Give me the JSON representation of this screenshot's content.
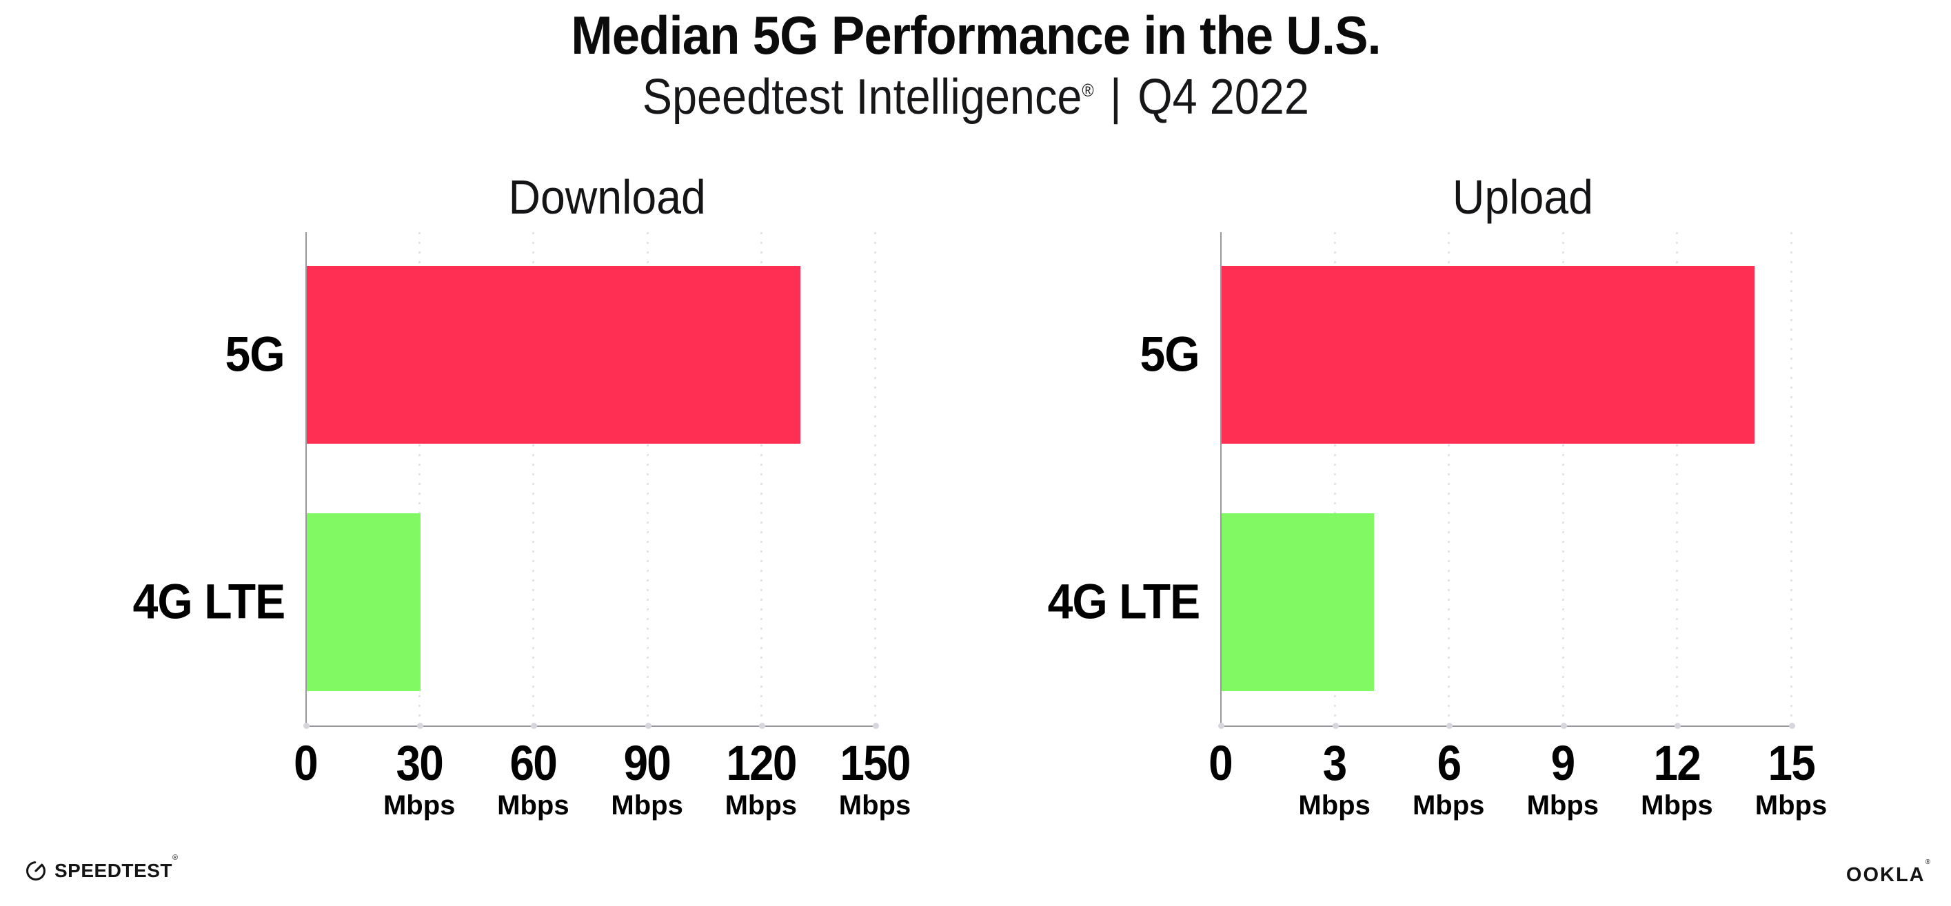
{
  "header": {
    "title": "Median 5G Performance in the U.S.",
    "subtitle_brand": "Speedtest Intelligence",
    "subtitle_reg": "®",
    "subtitle_divider": "|",
    "subtitle_period": "Q4 2022"
  },
  "chart_data": [
    {
      "type": "bar",
      "orientation": "horizontal",
      "title": "Download",
      "categories": [
        "5G",
        "4G LTE"
      ],
      "values": [
        130,
        30
      ],
      "unit": "Mbps",
      "xlim": [
        0,
        150
      ],
      "xticks": [
        0,
        30,
        60,
        90,
        120,
        150
      ],
      "bar_colors": [
        "#ff2e53",
        "#80f963"
      ],
      "grid": true,
      "gridline_style": "dotted-vertical",
      "legend": "none"
    },
    {
      "type": "bar",
      "orientation": "horizontal",
      "title": "Upload",
      "categories": [
        "5G",
        "4G LTE"
      ],
      "values": [
        14,
        4
      ],
      "unit": "Mbps",
      "xlim": [
        0,
        15
      ],
      "xticks": [
        0,
        3,
        6,
        9,
        12,
        15
      ],
      "bar_colors": [
        "#ff2e53",
        "#80f963"
      ],
      "grid": true,
      "gridline_style": "dotted-vertical",
      "legend": "none"
    }
  ],
  "footer": {
    "speedtest_label": "SPEEDTEST",
    "speedtest_mark": "®",
    "ookla_label": "OOKLA",
    "ookla_mark": "®"
  },
  "colors": {
    "bar_5g": "#ff2e53",
    "bar_4g_lte": "#80f963",
    "axis": "#98989d",
    "gridline": "#e3e3eb",
    "text": "#0b0b0c"
  }
}
